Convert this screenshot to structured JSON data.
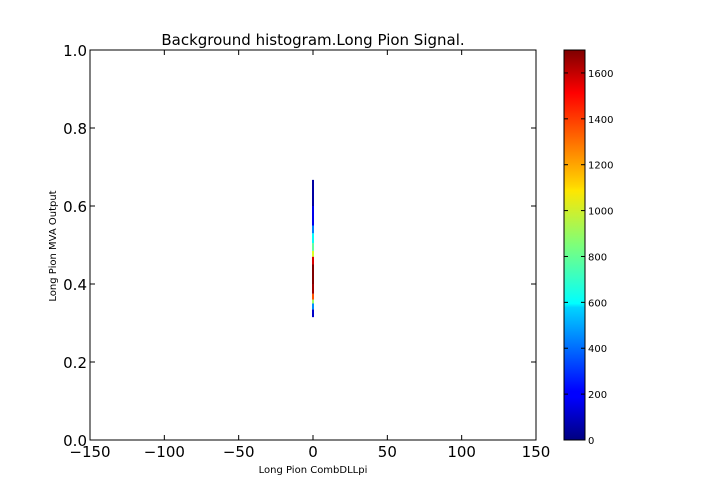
{
  "chart_data": {
    "type": "heatmap",
    "title": "Background histogram.Long Pion Signal.",
    "xlabel": "Long Pion CombDLLpi",
    "ylabel": "Long Pion MVA Output",
    "xlim": [
      -150,
      150
    ],
    "ylim": [
      0.0,
      1.0
    ],
    "x_ticks": [
      -150,
      -100,
      -50,
      0,
      50,
      100,
      150
    ],
    "x_tick_labels": [
      "−150",
      "−100",
      "−50",
      "0",
      "50",
      "100",
      "150"
    ],
    "y_ticks": [
      0.0,
      0.2,
      0.4,
      0.6,
      0.8,
      1.0
    ],
    "y_tick_labels": [
      "0.0",
      "0.2",
      "0.4",
      "0.6",
      "0.8",
      "1.0"
    ],
    "grid": false,
    "colormap": "jet",
    "colorbar": {
      "range": [
        0,
        1700
      ],
      "ticks": [
        0,
        200,
        400,
        600,
        800,
        1000,
        1200,
        1400,
        1600
      ],
      "tick_labels": [
        "0",
        "200",
        "400",
        "600",
        "800",
        "1000",
        "1200",
        "1400",
        "1600"
      ]
    },
    "x_value": 0,
    "cells": [
      {
        "y0": 0.315,
        "y1": 0.335,
        "value": 120
      },
      {
        "y0": 0.335,
        "y1": 0.35,
        "value": 450
      },
      {
        "y0": 0.35,
        "y1": 0.36,
        "value": 900
      },
      {
        "y0": 0.36,
        "y1": 0.375,
        "value": 1350
      },
      {
        "y0": 0.375,
        "y1": 0.4,
        "value": 1650
      },
      {
        "y0": 0.4,
        "y1": 0.45,
        "value": 1700
      },
      {
        "y0": 0.45,
        "y1": 0.47,
        "value": 1550
      },
      {
        "y0": 0.47,
        "y1": 0.485,
        "value": 1000
      },
      {
        "y0": 0.485,
        "y1": 0.505,
        "value": 800
      },
      {
        "y0": 0.505,
        "y1": 0.53,
        "value": 650
      },
      {
        "y0": 0.53,
        "y1": 0.55,
        "value": 420
      },
      {
        "y0": 0.55,
        "y1": 0.6,
        "value": 180
      },
      {
        "y0": 0.6,
        "y1": 0.667,
        "value": 60
      }
    ]
  }
}
